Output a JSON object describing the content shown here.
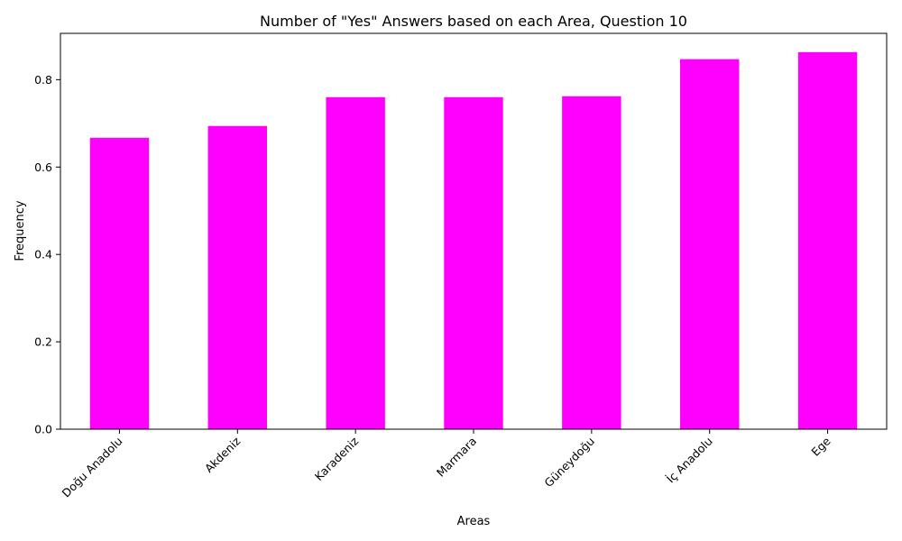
{
  "chart_data": {
    "type": "bar",
    "title": "Number of \"Yes\" Answers based on each Area, Question 10",
    "xlabel": "Areas",
    "ylabel": "Frequency",
    "categories": [
      "Doğu Anadolu",
      "Akdeniz",
      "Karadeniz",
      "Marmara",
      "Güneydoğu",
      "İç Anadolu",
      "Ege"
    ],
    "values": [
      0.667,
      0.694,
      0.76,
      0.76,
      0.762,
      0.847,
      0.863
    ],
    "ylim": [
      0,
      0.906
    ],
    "yticks": [
      0.0,
      0.2,
      0.4,
      0.6,
      0.8
    ],
    "ytick_labels": [
      "0.0",
      "0.2",
      "0.4",
      "0.6",
      "0.8"
    ],
    "bar_color": "#ff00ff",
    "grid": false,
    "legend": "none"
  }
}
